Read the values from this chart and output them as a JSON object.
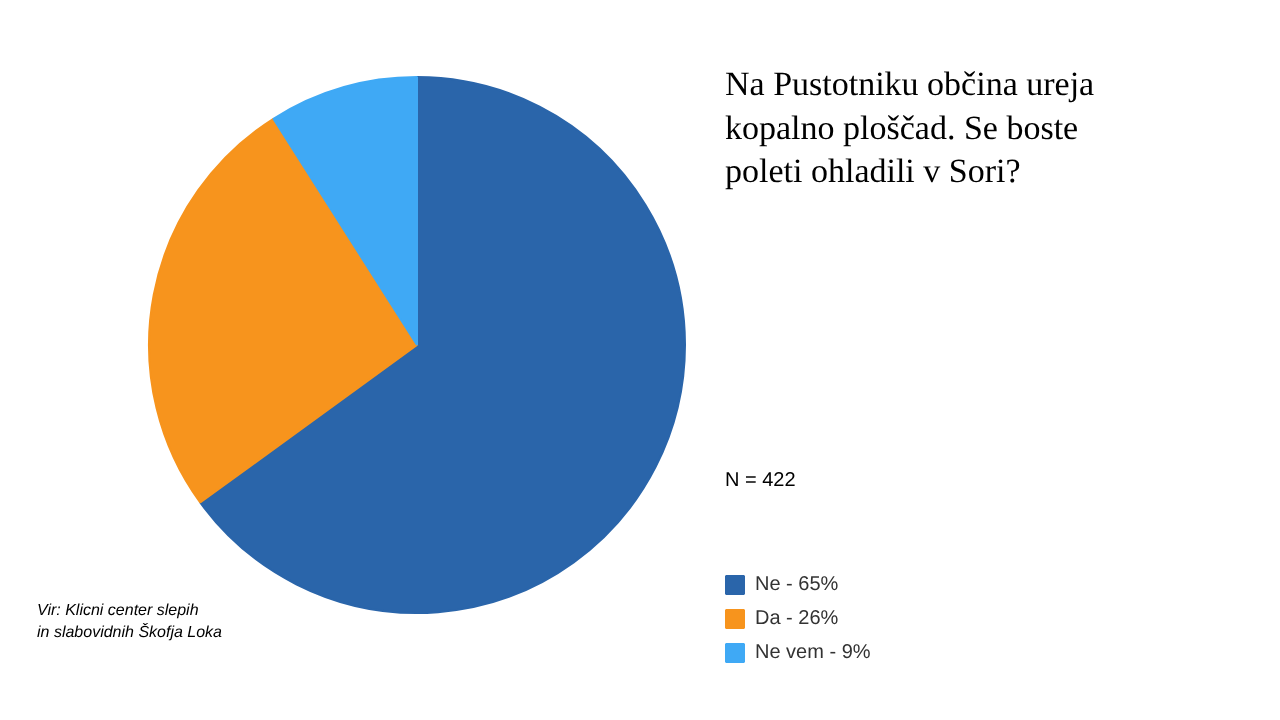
{
  "chart_data": {
    "type": "pie",
    "title": "Na Pustotniku občina ureja kopalno ploščad. Se boste poleti ohladili v Sori?",
    "subtitle": "N = 422",
    "categories": [
      "Ne - 65%",
      "Da - 26%",
      "Ne vem - 9%"
    ],
    "values": [
      65,
      26,
      9
    ],
    "colors": [
      "#2a65aa",
      "#f7941d",
      "#3fa9f5"
    ],
    "legend": "right",
    "annotations": [
      "Vir: Klicni center slepih\nin slabovidnih Škofja Loka"
    ]
  }
}
